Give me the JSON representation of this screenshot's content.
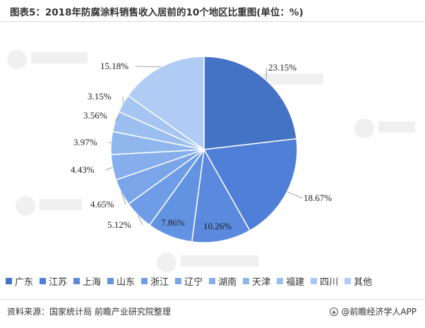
{
  "title": "图表5：2018年防腐涂料销售收入居前的10个地区比重图(单位：%)",
  "chart_data": {
    "type": "pie",
    "title": "图表5：2018年防腐涂料销售收入居前的10个地区比重图(单位：%)",
    "unit": "%",
    "legend_position": "bottom",
    "categories": [
      "广东",
      "江苏",
      "上海",
      "山东",
      "浙江",
      "辽宁",
      "湖南",
      "天津",
      "福建",
      "四川",
      "其他"
    ],
    "values": [
      23.15,
      18.67,
      10.26,
      7.86,
      5.12,
      4.65,
      4.43,
      3.97,
      3.56,
      3.15,
      15.18
    ],
    "labels": [
      "23.15%",
      "18.67%",
      "10.26%",
      "7.86%",
      "5.12%",
      "4.65%",
      "4.43%",
      "3.97%",
      "3.56%",
      "3.15%",
      "15.18%"
    ],
    "colors": [
      "#4472c4",
      "#4f7fd6",
      "#5a89dd",
      "#6293e2",
      "#6e9ce6",
      "#7aa5e8",
      "#86aeec",
      "#90b6ee",
      "#9bbef0",
      "#a6c5f2",
      "#b0ccf4"
    ]
  },
  "footer": {
    "source": "资料来源：国家统计局 前瞻产业研究院整理",
    "brand": "@前瞻经济学人APP"
  },
  "watermark_icon": "qianzhan-logo-icon"
}
